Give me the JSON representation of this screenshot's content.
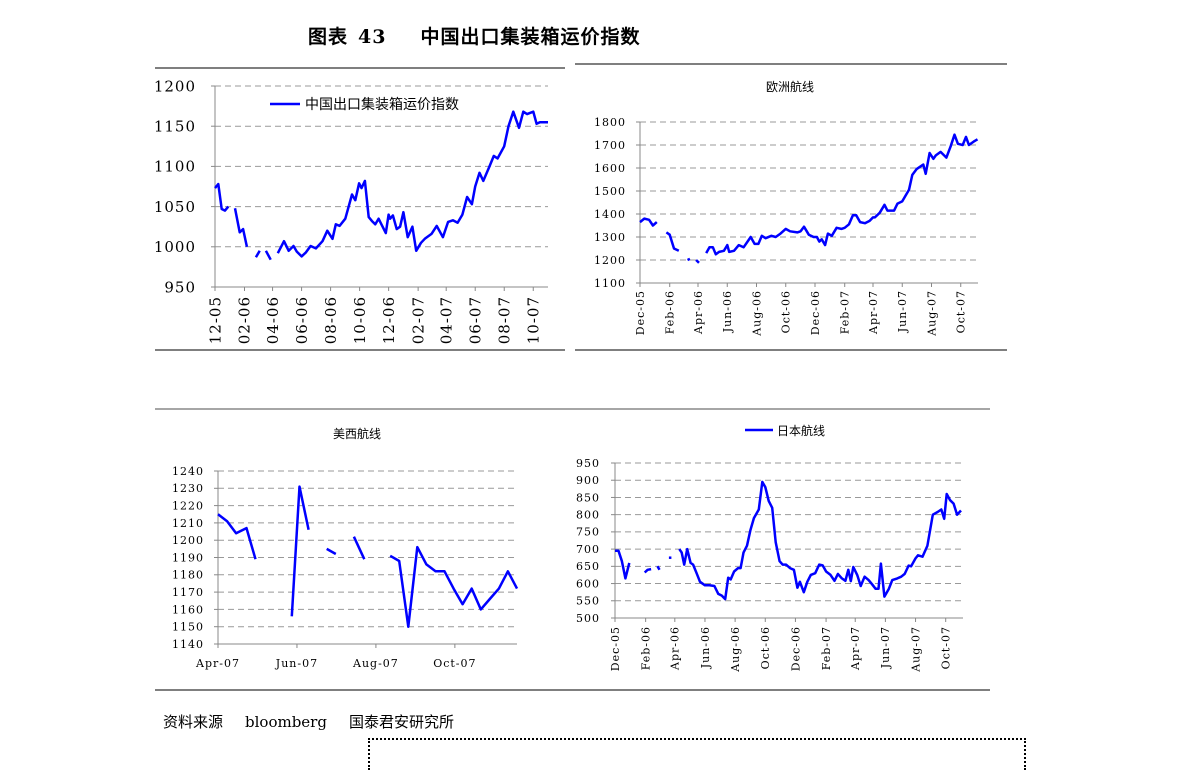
{
  "figure": {
    "label": "图表",
    "number": "43",
    "title": "中国出口集装箱运价指数"
  },
  "source": {
    "label": "资料来源",
    "provider": "bloomberg",
    "institute": "国泰君安研究所"
  },
  "chart_data": [
    {
      "type": "line",
      "title": "",
      "legend": {
        "entries": [
          "中国出口集装箱运价指数"
        ],
        "position": "top-left"
      },
      "ylim": [
        950,
        1200
      ],
      "yticks": [
        950,
        1000,
        1050,
        1100,
        1150,
        1200
      ],
      "xlim": [
        "2005-12-01",
        "2007-11-01"
      ],
      "xticks": [
        [
          "2005-12-01",
          "12-05"
        ],
        [
          "2006-02-01",
          "02-06"
        ],
        [
          "2006-04-01",
          "04-06"
        ],
        [
          "2006-06-01",
          "06-06"
        ],
        [
          "2006-08-01",
          "08-06"
        ],
        [
          "2006-10-01",
          "10-06"
        ],
        [
          "2006-12-01",
          "12-06"
        ],
        [
          "2007-02-01",
          "02-07"
        ],
        [
          "2007-04-01",
          "04-07"
        ],
        [
          "2007-06-01",
          "06-07"
        ],
        [
          "2007-08-01",
          "08-07"
        ],
        [
          "2007-10-01",
          "10-07"
        ]
      ],
      "xlabel_orientation": "vertical",
      "grid": true,
      "color": "#0000FF",
      "series": [
        {
          "name": "中国出口集装箱运价指数",
          "x": [
            "2005-12-01",
            "2005-12-08",
            "2005-12-15",
            "2005-12-22",
            "2005-12-29",
            "2006-01-08",
            "2006-01-12",
            "2006-01-22",
            "2006-01-29",
            "2006-02-06",
            "2006-02-15",
            "2006-02-25",
            "2006-03-05",
            "2006-03-12",
            "2006-03-18",
            "2006-03-28",
            "2006-04-08",
            "2006-04-12",
            "2006-04-25",
            "2006-05-05",
            "2006-05-15",
            "2006-05-22",
            "2006-06-01",
            "2006-06-10",
            "2006-06-20",
            "2006-07-01",
            "2006-07-15",
            "2006-07-25",
            "2006-08-05",
            "2006-08-12",
            "2006-08-20",
            "2006-09-01",
            "2006-09-15",
            "2006-09-22",
            "2006-09-30",
            "2006-10-05",
            "2006-10-12",
            "2006-10-20",
            "2006-10-27",
            "2006-11-03",
            "2006-11-10",
            "2006-11-25",
            "2006-12-01",
            "2006-12-04",
            "2006-12-10",
            "2006-12-18",
            "2006-12-25",
            "2007-01-01",
            "2007-01-10",
            "2007-01-20",
            "2007-01-28",
            "2007-02-07",
            "2007-02-15",
            "2007-03-01",
            "2007-03-12",
            "2007-03-25",
            "2007-04-05",
            "2007-04-15",
            "2007-04-25",
            "2007-05-05",
            "2007-05-15",
            "2007-05-25",
            "2007-06-01",
            "2007-06-10",
            "2007-06-18",
            "2007-07-01",
            "2007-07-10",
            "2007-07-18",
            "2007-08-01",
            "2007-08-10",
            "2007-08-20",
            "2007-09-01",
            "2007-09-10",
            "2007-09-18",
            "2007-10-01",
            "2007-10-08",
            "2007-10-15",
            "2007-10-20",
            "2007-10-25",
            "2007-11-01"
          ],
          "values": [
            1073,
            1078,
            1047,
            1045,
            1050,
            null,
            1048,
            1018,
            1022,
            1000,
            null,
            987,
            995,
            null,
            995,
            984,
            null,
            992,
            1007,
            995,
            1001,
            994,
            988,
            993,
            1001,
            998,
            1007,
            1020,
            1010,
            1028,
            1026,
            1035,
            1065,
            1058,
            1079,
            1073,
            1082,
            1037,
            1032,
            1028,
            1035,
            1017,
            1040,
            1035,
            1039,
            1022,
            1025,
            1043,
            1012,
            1025,
            995,
            1005,
            1010,
            1016,
            1026,
            1012,
            1031,
            1033,
            1030,
            1040,
            1062,
            1053,
            1075,
            1092,
            1082,
            1100,
            1113,
            1110,
            1125,
            1150,
            1168,
            1148,
            1168,
            1165,
            1168,
            1153,
            1155,
            1155,
            1155,
            1155
          ]
        }
      ]
    },
    {
      "type": "line",
      "title": "欧洲航线",
      "ylim": [
        1100,
        1800
      ],
      "yticks": [
        1100,
        1200,
        1300,
        1400,
        1500,
        1600,
        1700,
        1800
      ],
      "xlim": [
        "2005-12-01",
        "2007-11-06"
      ],
      "xticks": [
        [
          "2005-12-01",
          "Dec-05"
        ],
        [
          "2006-02-01",
          "Feb-06"
        ],
        [
          "2006-04-01",
          "Apr-06"
        ],
        [
          "2006-06-01",
          "Jun-06"
        ],
        [
          "2006-08-01",
          "Aug-06"
        ],
        [
          "2006-10-01",
          "Oct-06"
        ],
        [
          "2006-12-01",
          "Dec-06"
        ],
        [
          "2007-02-01",
          "Feb-07"
        ],
        [
          "2007-04-01",
          "Apr-07"
        ],
        [
          "2007-06-01",
          "Jun-07"
        ],
        [
          "2007-08-01",
          "Aug-07"
        ],
        [
          "2007-10-01",
          "Oct-07"
        ]
      ],
      "xlabel_orientation": "vertical",
      "grid": true,
      "color": "#0000FF",
      "series": [
        {
          "x": [
            "2005-12-01",
            "2005-12-10",
            "2005-12-20",
            "2005-12-28",
            "2006-01-05",
            "2006-01-15",
            "2006-01-25",
            "2006-02-01",
            "2006-02-10",
            "2006-02-20",
            "2006-03-01",
            "2006-03-10",
            "2006-03-15",
            "2006-03-20",
            "2006-03-28",
            "2006-04-03",
            "2006-04-10",
            "2006-04-18",
            "2006-04-25",
            "2006-05-02",
            "2006-05-08",
            "2006-05-15",
            "2006-05-25",
            "2006-06-01",
            "2006-06-05",
            "2006-06-15",
            "2006-06-25",
            "2006-07-05",
            "2006-07-20",
            "2006-07-28",
            "2006-08-05",
            "2006-08-12",
            "2006-08-20",
            "2006-09-01",
            "2006-09-10",
            "2006-09-20",
            "2006-10-01",
            "2006-10-10",
            "2006-10-25",
            "2006-11-01",
            "2006-11-08",
            "2006-11-18",
            "2006-11-28",
            "2006-12-05",
            "2006-12-10",
            "2006-12-15",
            "2006-12-22",
            "2006-12-28",
            "2007-01-05",
            "2007-01-15",
            "2007-01-25",
            "2007-02-01",
            "2007-02-10",
            "2007-02-18",
            "2007-02-25",
            "2007-03-05",
            "2007-03-15",
            "2007-03-25",
            "2007-04-01",
            "2007-04-05",
            "2007-04-15",
            "2007-04-25",
            "2007-05-01",
            "2007-05-15",
            "2007-05-22",
            "2007-06-01",
            "2007-06-15",
            "2007-06-22",
            "2007-07-01",
            "2007-07-15",
            "2007-07-20",
            "2007-07-28",
            "2007-08-05",
            "2007-08-10",
            "2007-08-20",
            "2007-09-01",
            "2007-09-10",
            "2007-09-18",
            "2007-09-25",
            "2007-10-05",
            "2007-10-12",
            "2007-10-18",
            "2007-10-28",
            "2007-11-05"
          ],
          "values": [
            1365,
            1380,
            1375,
            1350,
            1365,
            null,
            1320,
            1310,
            1250,
            1240,
            null,
            1200,
            1205,
            null,
            1200,
            1188,
            null,
            1230,
            1255,
            1255,
            1225,
            1235,
            1240,
            1265,
            1235,
            1240,
            1265,
            1255,
            1300,
            1270,
            1270,
            1305,
            1295,
            1305,
            1300,
            1315,
            1335,
            1325,
            1320,
            1325,
            1345,
            1310,
            1300,
            1300,
            1280,
            1290,
            1265,
            1315,
            1305,
            1340,
            1335,
            1340,
            1355,
            1395,
            1395,
            1365,
            1360,
            1370,
            1385,
            1385,
            1405,
            1440,
            1415,
            1415,
            1445,
            1455,
            1505,
            1570,
            1595,
            1615,
            1575,
            1665,
            1640,
            1655,
            1670,
            1645,
            1695,
            1745,
            1705,
            1700,
            1735,
            1700,
            1715,
            1725
          ]
        }
      ]
    },
    {
      "type": "line",
      "title": "美西航线",
      "ylim": [
        1140,
        1240
      ],
      "yticks": [
        1140,
        1150,
        1160,
        1170,
        1180,
        1190,
        1200,
        1210,
        1220,
        1230,
        1240
      ],
      "xlim": [
        "2007-04-01",
        "2007-11-18"
      ],
      "xticks": [
        [
          "2007-04-01",
          "Apr-07"
        ],
        [
          "2007-06-01",
          "Jun-07"
        ],
        [
          "2007-08-01",
          "Aug-07"
        ],
        [
          "2007-10-01",
          "Oct-07"
        ]
      ],
      "xlabel_orientation": "horizontal",
      "grid": true,
      "color": "#0000FF",
      "series": [
        {
          "x": [
            "2007-04-01",
            "2007-04-08",
            "2007-04-15",
            "2007-04-23",
            "2007-04-30",
            "2007-05-15",
            "2007-05-28",
            "2007-06-03",
            "2007-06-10",
            "2007-06-17",
            "2007-06-24",
            "2007-07-01",
            "2007-07-08",
            "2007-07-15",
            "2007-07-23",
            "2007-08-01",
            "2007-08-12",
            "2007-08-19",
            "2007-08-26",
            "2007-09-02",
            "2007-09-09",
            "2007-09-16",
            "2007-09-23",
            "2007-09-30",
            "2007-10-07",
            "2007-10-14",
            "2007-10-21",
            "2007-10-28",
            "2007-11-04",
            "2007-11-11",
            "2007-11-18"
          ],
          "values": [
            1215,
            1211,
            1204,
            1207,
            1189,
            null,
            1156,
            1231,
            1206,
            null,
            1195,
            1192,
            null,
            1202,
            1189,
            null,
            1191,
            1188,
            1150,
            1196,
            1186,
            1182,
            1182,
            1172,
            1163,
            1172,
            1160,
            1166,
            1172,
            1182,
            1172
          ]
        }
      ]
    },
    {
      "type": "line",
      "title": "",
      "legend": {
        "entries": [
          "日本航线"
        ],
        "position": "top-center"
      },
      "ylim": [
        500,
        950
      ],
      "yticks": [
        500,
        550,
        600,
        650,
        700,
        750,
        800,
        850,
        900,
        950
      ],
      "xlim": [
        "2005-12-01",
        "2007-11-05"
      ],
      "xticks": [
        [
          "2005-12-01",
          "Dec-05"
        ],
        [
          "2006-02-01",
          "Feb-06"
        ],
        [
          "2006-04-01",
          "Apr-06"
        ],
        [
          "2006-06-01",
          "Jun-06"
        ],
        [
          "2006-08-01",
          "Aug-06"
        ],
        [
          "2006-10-01",
          "Oct-06"
        ],
        [
          "2006-12-01",
          "Dec-06"
        ],
        [
          "2007-02-01",
          "Feb-07"
        ],
        [
          "2007-04-01",
          "Apr-07"
        ],
        [
          "2007-06-01",
          "Jun-07"
        ],
        [
          "2007-08-01",
          "Aug-07"
        ],
        [
          "2007-10-01",
          "Oct-07"
        ]
      ],
      "xlabel_orientation": "vertical",
      "grid": true,
      "color": "#0000FF",
      "series": [
        {
          "name": "日本航线",
          "x": [
            "2005-12-01",
            "2005-12-08",
            "2005-12-15",
            "2005-12-22",
            "2005-12-30",
            "2006-01-15",
            "2006-01-30",
            "2006-02-05",
            "2006-02-12",
            "2006-02-18",
            "2006-02-25",
            "2006-03-01",
            "2006-03-10",
            "2006-03-20",
            "2006-03-25",
            "2006-04-02",
            "2006-04-10",
            "2006-04-15",
            "2006-04-20",
            "2006-04-26",
            "2006-05-03",
            "2006-05-08",
            "2006-05-15",
            "2006-05-22",
            "2006-06-01",
            "2006-06-10",
            "2006-06-20",
            "2006-06-28",
            "2006-07-05",
            "2006-07-12",
            "2006-07-18",
            "2006-07-23",
            "2006-07-30",
            "2006-08-07",
            "2006-08-12",
            "2006-08-18",
            "2006-08-25",
            "2006-09-01",
            "2006-09-08",
            "2006-09-18",
            "2006-09-25",
            "2006-10-01",
            "2006-10-08",
            "2006-10-15",
            "2006-10-22",
            "2006-10-30",
            "2006-11-05",
            "2006-11-12",
            "2006-11-20",
            "2006-11-28",
            "2006-12-05",
            "2006-12-10",
            "2006-12-18",
            "2006-12-25",
            "2007-01-01",
            "2007-01-10",
            "2007-01-18",
            "2007-01-25",
            "2007-02-01",
            "2007-02-10",
            "2007-02-18",
            "2007-02-25",
            "2007-03-05",
            "2007-03-12",
            "2007-03-18",
            "2007-03-23",
            "2007-03-28",
            "2007-04-05",
            "2007-04-12",
            "2007-04-20",
            "2007-04-28",
            "2007-05-05",
            "2007-05-12",
            "2007-05-18",
            "2007-05-23",
            "2007-05-30",
            "2007-06-08",
            "2007-06-15",
            "2007-06-25",
            "2007-07-03",
            "2007-07-10",
            "2007-07-18",
            "2007-07-23",
            "2007-08-01",
            "2007-08-06",
            "2007-08-15",
            "2007-08-25",
            "2007-09-05",
            "2007-09-15",
            "2007-09-22",
            "2007-09-28",
            "2007-10-03",
            "2007-10-10",
            "2007-10-17",
            "2007-10-24",
            "2007-11-01"
          ],
          "values": [
            695,
            695,
            665,
            615,
            660,
            null,
            632,
            640,
            642,
            null,
            650,
            640,
            null,
            675,
            675,
            null,
            700,
            690,
            655,
            700,
            660,
            655,
            630,
            605,
            595,
            595,
            593,
            570,
            565,
            555,
            617,
            612,
            635,
            645,
            645,
            690,
            710,
            755,
            790,
            815,
            895,
            880,
            840,
            820,
            720,
            665,
            655,
            655,
            645,
            640,
            588,
            605,
            575,
            605,
            625,
            630,
            655,
            653,
            635,
            625,
            608,
            628,
            615,
            608,
            640,
            607,
            648,
            625,
            593,
            620,
            610,
            598,
            585,
            585,
            658,
            562,
            585,
            610,
            615,
            620,
            628,
            652,
            650,
            673,
            682,
            678,
            710,
            800,
            808,
            815,
            788,
            860,
            842,
            832,
            800,
            812
          ]
        }
      ]
    }
  ]
}
